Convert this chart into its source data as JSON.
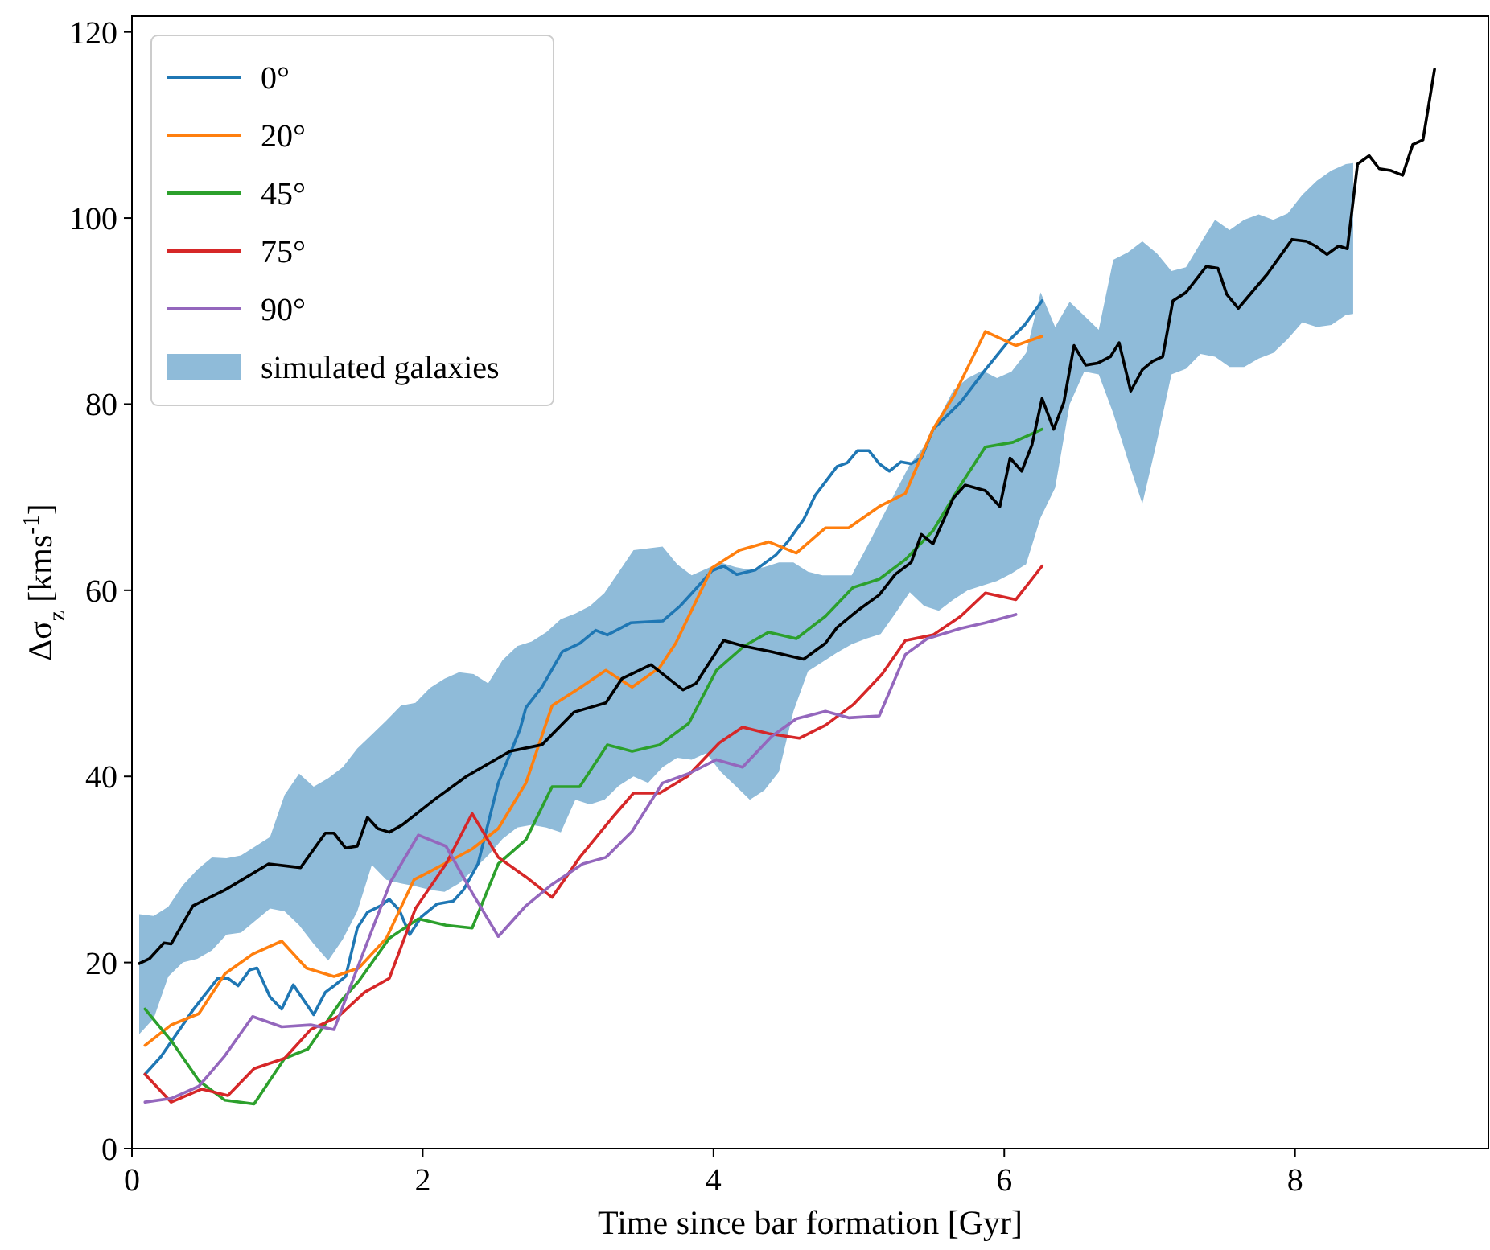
{
  "chart_data": {
    "type": "line",
    "xlabel": "Time since bar formation [Gyr]",
    "ylabel": "Δσ$_{z}$ [kms$^{-1}$]",
    "xlim": [
      0,
      9.33
    ],
    "ylim": [
      0,
      121.7
    ],
    "xticks": [
      0,
      2,
      4,
      6,
      8
    ],
    "yticks": [
      0,
      20,
      40,
      60,
      80,
      100,
      120
    ],
    "legend": "top left",
    "series": [
      {
        "name": "0°",
        "color": "#1f77b4",
        "x": [
          0.09,
          0.2,
          0.42,
          0.59,
          0.66,
          0.73,
          0.81,
          0.86,
          0.95,
          1.03,
          1.11,
          1.25,
          1.33,
          1.39,
          1.47,
          1.55,
          1.62,
          1.71,
          1.77,
          1.84,
          1.91,
          1.99,
          2.1,
          2.21,
          2.28,
          2.38,
          2.52,
          2.67,
          2.71,
          2.82,
          2.96,
          3.08,
          3.19,
          3.27,
          3.43,
          3.65,
          3.77,
          3.87,
          3.99,
          4.07,
          4.16,
          4.29,
          4.43,
          4.51,
          4.62,
          4.7,
          4.85,
          4.92,
          4.99,
          5.07,
          5.14,
          5.21,
          5.29,
          5.36,
          5.43,
          5.51,
          5.7,
          5.87,
          6.03,
          6.14,
          6.26
        ],
        "values": [
          8,
          9.9,
          14.9,
          18.3,
          18.3,
          17.5,
          19.2,
          19.4,
          16.3,
          15,
          17.6,
          14.4,
          16.8,
          17.5,
          18.5,
          23.7,
          25.4,
          26.1,
          26.8,
          25.6,
          23,
          24.9,
          26.3,
          26.6,
          27.8,
          30.6,
          39.3,
          45.1,
          47.4,
          49.6,
          53.4,
          54.3,
          55.7,
          55.2,
          56.5,
          56.7,
          58.3,
          60,
          62.1,
          62.6,
          61.7,
          62.2,
          63.8,
          65.2,
          67.6,
          70.2,
          73.3,
          73.7,
          75,
          75,
          73.6,
          72.8,
          73.8,
          73.6,
          74.2,
          77.3,
          80.2,
          83.7,
          86.8,
          88.5,
          91.1
        ]
      },
      {
        "name": "20°",
        "color": "#ff7f0e",
        "x": [
          0.09,
          0.27,
          0.46,
          0.64,
          0.83,
          1.03,
          1.2,
          1.39,
          1.56,
          1.75,
          1.94,
          2.04,
          2.34,
          2.52,
          2.71,
          2.89,
          3.08,
          3.26,
          3.44,
          3.63,
          3.74,
          3.99,
          4.18,
          4.38,
          4.57,
          4.77,
          4.93,
          5.14,
          5.32,
          5.51,
          5.65,
          5.87,
          6.08,
          6.26
        ],
        "values": [
          11.1,
          13.3,
          14.5,
          18.8,
          20.9,
          22.3,
          19.4,
          18.5,
          19.4,
          22.6,
          28.9,
          29.7,
          32.2,
          34.4,
          39.3,
          47.6,
          49.5,
          51.4,
          49.6,
          51.7,
          54.3,
          62.4,
          64.3,
          65.2,
          64,
          66.7,
          66.7,
          69,
          70.4,
          77.3,
          80.8,
          87.8,
          86.3,
          87.3
        ]
      },
      {
        "name": "45°",
        "color": "#2ca02c",
        "x": [
          0.09,
          0.27,
          0.46,
          0.64,
          0.84,
          1.05,
          1.21,
          1.44,
          1.56,
          1.77,
          1.97,
          2.16,
          2.34,
          2.52,
          2.71,
          2.89,
          3.08,
          3.27,
          3.44,
          3.63,
          3.83,
          4.02,
          4.21,
          4.38,
          4.57,
          4.77,
          4.96,
          5.14,
          5.32,
          5.51,
          5.7,
          5.87,
          6.06,
          6.26
        ],
        "values": [
          15,
          11.6,
          7.3,
          5.2,
          4.8,
          9.7,
          10.7,
          15.9,
          18,
          22.6,
          24.7,
          24,
          23.7,
          30.6,
          33.2,
          38.9,
          38.9,
          43.4,
          42.7,
          43.4,
          45.7,
          51.4,
          54,
          55.5,
          54.8,
          57.2,
          60.3,
          61.2,
          63.3,
          66.4,
          71.3,
          75.4,
          75.9,
          77.3
        ]
      },
      {
        "name": "75°",
        "color": "#d62728",
        "x": [
          0.09,
          0.27,
          0.48,
          0.66,
          0.84,
          1.05,
          1.23,
          1.42,
          1.6,
          1.77,
          1.95,
          2.16,
          2.34,
          2.52,
          2.71,
          2.89,
          3.08,
          3.3,
          3.45,
          3.63,
          3.82,
          4.04,
          4.2,
          4.38,
          4.59,
          4.77,
          4.96,
          5.16,
          5.32,
          5.51,
          5.7,
          5.87,
          6.08,
          6.26
        ],
        "values": [
          8,
          5,
          6.4,
          5.7,
          8.6,
          9.7,
          12.8,
          14.2,
          16.8,
          18.3,
          25.8,
          30.6,
          36,
          31.3,
          29.2,
          27,
          31.3,
          35.5,
          38.2,
          38.2,
          40,
          43.6,
          45.3,
          44.6,
          44.1,
          45.5,
          47.7,
          51,
          54.6,
          55.2,
          57.2,
          59.7,
          59,
          62.6
        ]
      },
      {
        "name": "90°",
        "color": "#9467bd",
        "x": [
          0.09,
          0.27,
          0.46,
          0.64,
          0.83,
          1.03,
          1.23,
          1.39,
          1.58,
          1.78,
          1.97,
          2.16,
          2.34,
          2.52,
          2.71,
          2.89,
          3.1,
          3.26,
          3.44,
          3.65,
          3.83,
          4.02,
          4.2,
          4.4,
          4.57,
          4.77,
          4.93,
          5.14,
          5.32,
          5.47,
          5.7,
          5.87,
          6.08
        ],
        "values": [
          5,
          5.4,
          6.7,
          10,
          14.2,
          13.1,
          13.3,
          12.8,
          20.6,
          28.7,
          33.7,
          32.5,
          27.5,
          22.8,
          26.1,
          28.4,
          30.6,
          31.3,
          34.1,
          39.3,
          40.3,
          41.8,
          41,
          44.3,
          46.2,
          47,
          46.3,
          46.5,
          53.1,
          54.8,
          55.9,
          56.5,
          57.4
        ]
      },
      {
        "name": "simulated galaxies",
        "type": "area",
        "color": "#8fbbd9",
        "values": [
          null,
          null,
          null,
          null,
          null,
          null,
          null,
          null,
          null,
          null,
          null,
          null,
          null,
          null,
          null,
          null,
          null,
          null,
          null,
          null,
          null,
          null,
          null,
          null,
          null,
          null,
          null,
          null,
          null,
          null,
          null,
          null,
          null,
          null,
          null,
          null,
          null,
          null,
          null,
          null,
          null,
          null,
          null,
          null,
          null,
          null,
          null,
          null,
          null,
          null,
          null,
          null,
          null,
          null,
          null,
          null,
          null,
          null,
          null,
          null,
          null,
          null,
          null,
          null,
          null,
          null,
          null,
          null,
          null,
          null,
          null,
          null,
          null,
          null,
          null,
          null,
          null,
          null,
          null,
          null,
          null,
          null,
          null,
          null,
          null
        ],
        "x": [
          0.05,
          0.15,
          0.25,
          0.35,
          0.45,
          0.55,
          0.65,
          0.75,
          0.85,
          0.95,
          1.05,
          1.15,
          1.25,
          1.35,
          1.45,
          1.55,
          1.65,
          1.75,
          1.85,
          1.95,
          2.05,
          2.15,
          2.25,
          2.35,
          2.45,
          2.55,
          2.65,
          2.75,
          2.85,
          2.95,
          3.05,
          3.15,
          3.25,
          3.35,
          3.45,
          3.55,
          3.65,
          3.75,
          3.85,
          3.95,
          4.05,
          4.15,
          4.25,
          4.35,
          4.45,
          4.55,
          4.65,
          4.75,
          4.85,
          4.95,
          5.05,
          5.15,
          5.25,
          5.35,
          5.45,
          5.55,
          5.65,
          5.75,
          5.85,
          5.95,
          6.05,
          6.15,
          6.25,
          6.35,
          6.45,
          6.55,
          6.65,
          6.75,
          6.85,
          6.95,
          7.05,
          7.15,
          7.25,
          7.35,
          7.45,
          7.55,
          7.65,
          7.75,
          7.85,
          7.95,
          8.05,
          8.15,
          8.25,
          8.35,
          8.4
        ],
        "lower": [
          12.3,
          14,
          18.5,
          20,
          20.4,
          21.3,
          23,
          23.2,
          24.5,
          25.8,
          25.5,
          24,
          22,
          20.2,
          22.5,
          25.5,
          30.5,
          28.9,
          28.5,
          28.2,
          27.8,
          27.6,
          28.5,
          30,
          31.5,
          33.3,
          34.5,
          34.8,
          34.5,
          34,
          37.5,
          37,
          37.5,
          39,
          40,
          39.3,
          41,
          42,
          41.8,
          42.5,
          40.5,
          39,
          37.5,
          38.5,
          40.5,
          47,
          51.3,
          52.3,
          53.3,
          54.2,
          54.8,
          55.3,
          57.5,
          59.8,
          58.3,
          57.8,
          59,
          60,
          60.5,
          61,
          61.8,
          62.8,
          67.8,
          71,
          80,
          83.5,
          83.2,
          79,
          74,
          69.3,
          76,
          83.2,
          83.8,
          85.4,
          85.1,
          84,
          84,
          84.9,
          85.5,
          87,
          88.8,
          88.3,
          88.5,
          89.6,
          89.7
        ],
        "upper": [
          25.2,
          25,
          26,
          28.3,
          30,
          31.3,
          31.2,
          31.5,
          32.5,
          33.5,
          38,
          40.3,
          38.9,
          39.8,
          41,
          43,
          44.5,
          46,
          47.6,
          47.9,
          49.5,
          50.5,
          51.2,
          51,
          50,
          52.5,
          54,
          54.5,
          55.5,
          56.9,
          57.5,
          58.3,
          59.7,
          62,
          64.3,
          64.5,
          64.7,
          62.8,
          61.6,
          62.3,
          63,
          62.5,
          62.2,
          62.5,
          63,
          63,
          62,
          61.6,
          61.6,
          61.6,
          64.5,
          67.5,
          70.5,
          73.5,
          75.5,
          78.5,
          81.5,
          82.8,
          83.6,
          82.8,
          83.5,
          85.5,
          92,
          88.3,
          91,
          89.5,
          88,
          95.5,
          96.3,
          97.5,
          96.2,
          94.3,
          94.7,
          97.3,
          99.8,
          98.7,
          99.8,
          100.4,
          99.8,
          100.5,
          102.5,
          104,
          105.1,
          105.8,
          105.9
        ]
      },
      {
        "color": "#000000",
        "x": [
          0.05,
          0.12,
          0.22,
          0.27,
          0.42,
          0.64,
          0.94,
          1.16,
          1.33,
          1.39,
          1.47,
          1.55,
          1.62,
          1.69,
          1.77,
          1.86,
          2.08,
          2.3,
          2.6,
          2.82,
          3.04,
          3.26,
          3.37,
          3.57,
          3.79,
          3.88,
          4.07,
          4.21,
          4.4,
          4.62,
          4.77,
          4.85,
          4.99,
          5.14,
          5.25,
          5.36,
          5.43,
          5.51,
          5.65,
          5.73,
          5.87,
          5.97,
          6.04,
          6.12,
          6.19,
          6.26,
          6.34,
          6.41,
          6.48,
          6.56,
          6.64,
          6.73,
          6.79,
          6.87,
          6.95,
          7.02,
          7.09,
          7.16,
          7.25,
          7.39,
          7.47,
          7.53,
          7.61,
          7.81,
          7.98,
          8.08,
          8.14,
          8.22,
          8.3,
          8.36,
          8.43,
          8.51,
          8.58,
          8.66,
          8.74,
          8.81,
          8.88,
          8.96
        ],
        "values": [
          19.9,
          20.4,
          22.1,
          22,
          26.1,
          27.8,
          30.6,
          30.2,
          33.9,
          33.9,
          32.3,
          32.5,
          35.6,
          34.4,
          34,
          34.8,
          37.5,
          40,
          42.7,
          43.4,
          46.9,
          47.9,
          50.5,
          52,
          49.3,
          50,
          54.6,
          54,
          53.4,
          52.6,
          54.3,
          56,
          57.8,
          59.5,
          61.7,
          63,
          66,
          65,
          69.9,
          71.3,
          70.7,
          69,
          74.2,
          72.8,
          75.6,
          80.6,
          77.3,
          80.2,
          86.3,
          84.2,
          84.4,
          85.1,
          86.6,
          81.4,
          83.7,
          84.6,
          85.1,
          91.1,
          92,
          94.8,
          94.6,
          91.8,
          90.3,
          94,
          97.7,
          97.5,
          97,
          96.1,
          97,
          96.7,
          105.8,
          106.7,
          105.3,
          105.1,
          104.6,
          107.9,
          108.4,
          116
        ]
      }
    ]
  }
}
